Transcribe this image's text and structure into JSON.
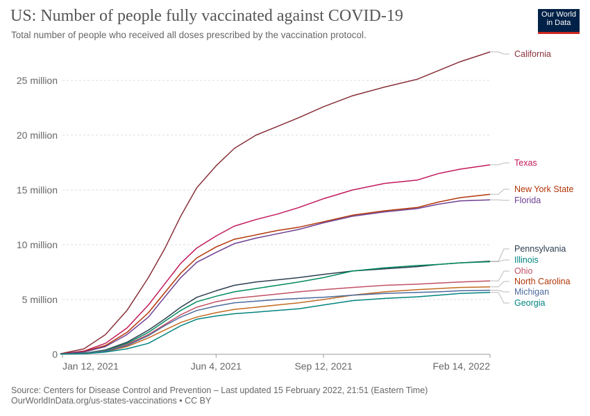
{
  "title": "US: Number of people fully vaccinated against COVID-19",
  "subtitle": "Total number of people who received all doses prescribed by the vaccination protocol.",
  "logo": {
    "line1": "Our World",
    "line2": "in Data"
  },
  "footer": {
    "source": "Source: Centers for Disease Control and Prevention – Last updated 15 February 2022, 21:51 (Eastern Time)",
    "url": "OurWorldInData.org/us-states-vaccinations • CC BY"
  },
  "chart_data": {
    "type": "line",
    "title": "US: Number of people fully vaccinated against COVID-19",
    "xlabel": "",
    "ylabel": "",
    "x_ticks": [
      {
        "label": "Jan 12, 2021",
        "day": 0
      },
      {
        "label": "Jun 4, 2021",
        "day": 143
      },
      {
        "label": "Sep 12, 2021",
        "day": 243
      },
      {
        "label": "Feb 14, 2022",
        "day": 398
      }
    ],
    "y_ticks": [
      {
        "label": "0",
        "value": 0
      },
      {
        "label": "5 million",
        "value": 5
      },
      {
        "label": "10 million",
        "value": 10
      },
      {
        "label": "15 million",
        "value": 15
      },
      {
        "label": "20 million",
        "value": 20
      },
      {
        "label": "25 million",
        "value": 25
      }
    ],
    "xlim_days": [
      0,
      398
    ],
    "ylim_millions": [
      0,
      28
    ],
    "grid": true,
    "x_days": [
      -2,
      20,
      40,
      60,
      80,
      95,
      110,
      125,
      143,
      160,
      180,
      200,
      220,
      243,
      270,
      300,
      330,
      350,
      370,
      398
    ],
    "series": [
      {
        "name": "California",
        "color": "#883039",
        "values": [
          0.05,
          0.5,
          1.8,
          4.0,
          7.0,
          9.6,
          12.6,
          15.2,
          17.2,
          18.8,
          20.0,
          20.8,
          21.6,
          22.6,
          23.6,
          24.4,
          25.1,
          25.9,
          26.7,
          27.6
        ]
      },
      {
        "name": "Texas",
        "color": "#b13507",
        "values": [
          0.03,
          0.3,
          1.0,
          2.4,
          4.5,
          6.4,
          8.3,
          9.7,
          10.8,
          11.7,
          12.3,
          12.8,
          13.4,
          14.2,
          15.0,
          15.6,
          15.9,
          16.5,
          16.9,
          17.3
        ]
      },
      {
        "name": "New York State",
        "color": "#b13507",
        "values": [
          0.03,
          0.25,
          0.8,
          2.0,
          3.8,
          5.6,
          7.4,
          8.8,
          9.8,
          10.5,
          10.9,
          11.3,
          11.6,
          12.1,
          12.7,
          13.1,
          13.4,
          13.9,
          14.3,
          14.6
        ]
      },
      {
        "name": "Florida",
        "color": "#6d3e91",
        "values": [
          0.03,
          0.2,
          0.7,
          1.8,
          3.4,
          5.2,
          7.0,
          8.4,
          9.3,
          10.1,
          10.6,
          11.0,
          11.4,
          12.0,
          12.6,
          13.0,
          13.3,
          13.7,
          14.0,
          14.1
        ]
      },
      {
        "name": "Pennsylvania",
        "color": "#286bbb",
        "values": [
          0.02,
          0.1,
          0.4,
          1.1,
          2.2,
          3.2,
          4.3,
          5.2,
          5.8,
          6.3,
          6.6,
          6.8,
          7.0,
          7.3,
          7.6,
          7.8,
          8.0,
          8.2,
          8.35,
          8.5
        ]
      },
      {
        "name": "Illinois",
        "color": "#00847e",
        "values": [
          0.02,
          0.1,
          0.35,
          1.0,
          2.0,
          3.0,
          4.0,
          4.8,
          5.3,
          5.7,
          6.0,
          6.3,
          6.6,
          7.0,
          7.6,
          7.9,
          8.1,
          8.2,
          8.35,
          8.45
        ]
      },
      {
        "name": "Ohio",
        "color": "#c15065",
        "values": [
          0.01,
          0.08,
          0.3,
          0.9,
          1.8,
          2.7,
          3.6,
          4.3,
          4.8,
          5.1,
          5.3,
          5.5,
          5.7,
          5.9,
          6.1,
          6.3,
          6.4,
          6.5,
          6.6,
          6.7
        ]
      },
      {
        "name": "North Carolina",
        "color": "#b13507",
        "values": [
          0.01,
          0.06,
          0.25,
          0.7,
          1.5,
          2.2,
          2.9,
          3.4,
          3.8,
          4.1,
          4.3,
          4.5,
          4.7,
          5.0,
          5.4,
          5.7,
          5.9,
          6.0,
          6.1,
          6.15
        ]
      },
      {
        "name": "Michigan",
        "color": "#4c6a9c",
        "values": [
          0.01,
          0.07,
          0.28,
          0.8,
          1.7,
          2.6,
          3.4,
          4.0,
          4.4,
          4.7,
          4.85,
          5.0,
          5.1,
          5.2,
          5.4,
          5.55,
          5.65,
          5.7,
          5.8,
          5.85
        ]
      },
      {
        "name": "Georgia",
        "color": "#00847e",
        "values": [
          0.01,
          0.05,
          0.2,
          0.5,
          1.0,
          1.8,
          2.6,
          3.2,
          3.5,
          3.7,
          3.85,
          4.0,
          4.15,
          4.5,
          4.9,
          5.1,
          5.25,
          5.4,
          5.55,
          5.65
        ]
      }
    ]
  }
}
